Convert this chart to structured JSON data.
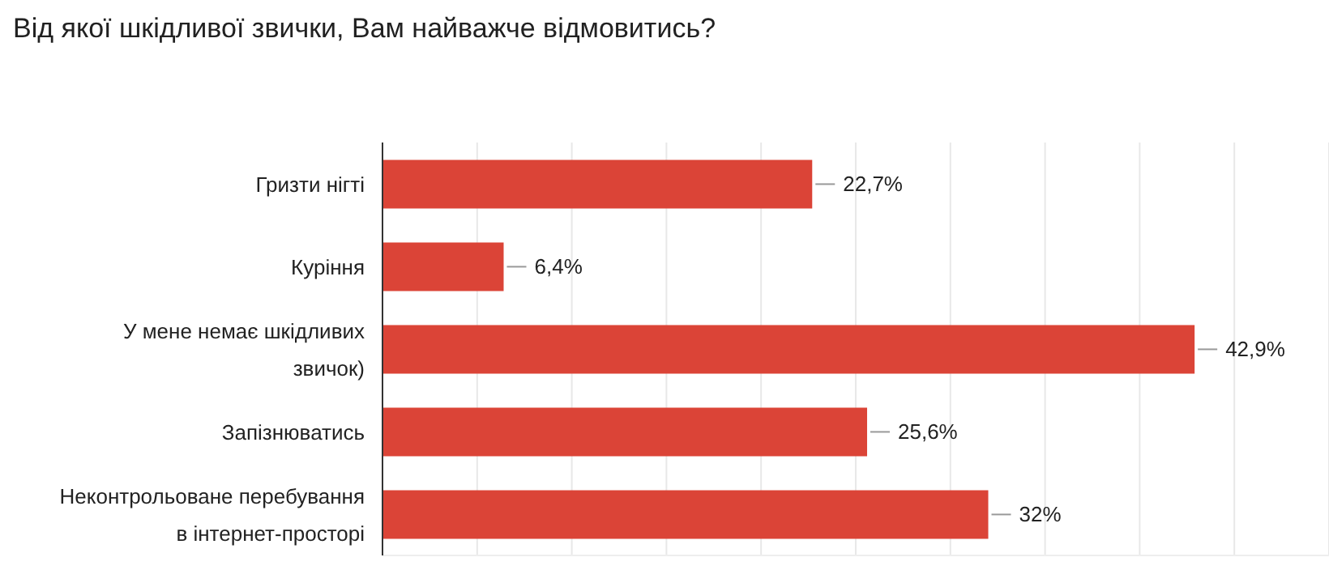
{
  "chart_data": {
    "type": "bar",
    "orientation": "horizontal",
    "title": "Від якої шкідливої звички, Вам найважче відмовитись?",
    "categories": [
      "Гризти нігті",
      "Куріння",
      "У мене немає шкідливих звичок)",
      "Запізнюватись",
      "Неконтрольоване перебування в інтернет-просторі"
    ],
    "values": [
      22.7,
      6.4,
      42.9,
      25.6,
      32
    ],
    "value_labels": [
      "22,7%",
      "6,4%",
      "42,9%",
      "25,6%",
      "32%"
    ],
    "color": "#db4437",
    "xlim": [
      0,
      50
    ],
    "tick_labels": "y",
    "grid": "x",
    "legend": false
  }
}
